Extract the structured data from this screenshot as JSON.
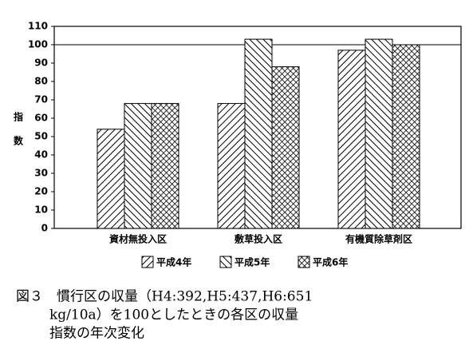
{
  "chart_data": {
    "type": "bar",
    "y_label": "指数",
    "categories": [
      "資材無投入区",
      "敷草投入区",
      "有機質除草剤区"
    ],
    "series": [
      {
        "name": "平成4年",
        "color": "#000000",
        "pattern": "forward-diagonal",
        "values": [
          54,
          68,
          97
        ]
      },
      {
        "name": "平成5年",
        "color": "#000000",
        "pattern": "back-diagonal",
        "values": [
          68,
          103,
          103
        ]
      },
      {
        "name": "平成6年",
        "color": "#000000",
        "pattern": "crosshatch",
        "values": [
          68,
          88,
          100
        ]
      }
    ],
    "ylim": [
      0,
      110
    ],
    "yticks": [
      0,
      10,
      20,
      30,
      40,
      50,
      60,
      70,
      80,
      90,
      100,
      110
    ],
    "reference_line": 100,
    "caption": [
      "図３　慣行区の収量（H4:392,H5:437,H6:651",
      "kg/10a）を100としたときの各区の収量",
      "指数の年次変化"
    ]
  }
}
